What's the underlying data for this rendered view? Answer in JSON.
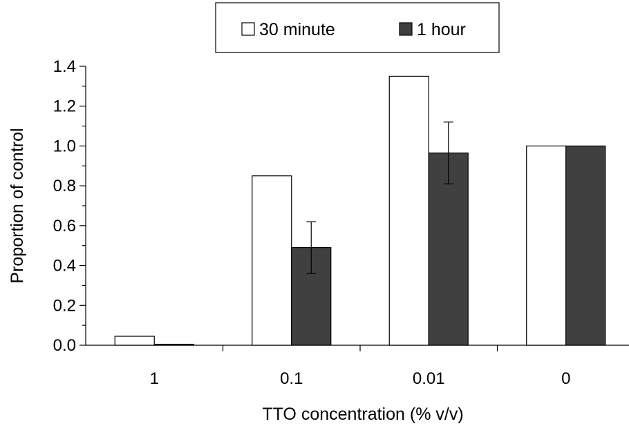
{
  "chart_data": {
    "type": "bar",
    "categories": [
      "1",
      "0.1",
      "0.01",
      "0"
    ],
    "series": [
      {
        "name": "30 minute",
        "color": "#ffffff",
        "values": [
          0.045,
          0.85,
          1.35,
          1.0
        ],
        "errors": [
          null,
          null,
          null,
          null
        ]
      },
      {
        "name": "1 hour",
        "color": "#404040",
        "values": [
          0.005,
          0.49,
          0.965,
          1.0
        ],
        "errors": [
          null,
          0.13,
          0.155,
          null
        ]
      }
    ],
    "xlabel": "TTO concentration (% v/v)",
    "ylabel": "Proportion of control",
    "ylim": [
      0,
      1.4
    ],
    "yticks": [
      "0.0",
      "0.2",
      "0.4",
      "0.6",
      "0.8",
      "1.0",
      "1.2",
      "1.4"
    ],
    "grid": false,
    "legend_position": "top-center"
  }
}
